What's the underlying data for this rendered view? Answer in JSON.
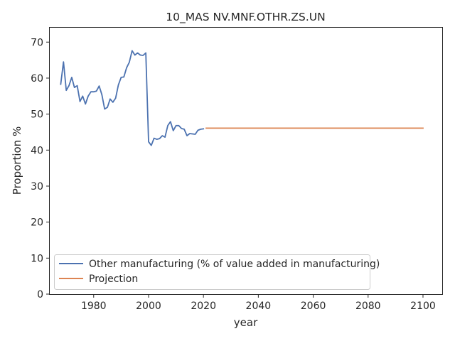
{
  "chart_data": {
    "type": "line",
    "title": "10_MAS NV.MNF.OTHR.ZS.UN",
    "xlabel": "year",
    "ylabel": "Proportion %",
    "xlim": [
      1964,
      2107
    ],
    "ylim": [
      0,
      74
    ],
    "xticks": [
      1980,
      2000,
      2020,
      2040,
      2060,
      2080,
      2100
    ],
    "yticks": [
      0,
      10,
      20,
      30,
      40,
      50,
      60,
      70
    ],
    "grid": false,
    "legend_position": "lower-left",
    "series": [
      {
        "name": "Other manufacturing (% of value added in manufacturing)",
        "color": "#4c72b0",
        "x": [
          1968,
          1969,
          1970,
          1971,
          1972,
          1973,
          1974,
          1975,
          1976,
          1977,
          1978,
          1979,
          1980,
          1981,
          1982,
          1983,
          1984,
          1985,
          1986,
          1987,
          1988,
          1989,
          1990,
          1991,
          1992,
          1993,
          1994,
          1995,
          1996,
          1997,
          1998,
          1999,
          2000,
          2001,
          2002,
          2003,
          2004,
          2005,
          2006,
          2007,
          2008,
          2009,
          2010,
          2011,
          2012,
          2013,
          2014,
          2015,
          2016,
          2017,
          2018,
          2019,
          2020
        ],
        "y": [
          58.3,
          64.5,
          56.6,
          57.9,
          60.2,
          57.4,
          57.9,
          53.5,
          55.0,
          52.8,
          55.0,
          56.2,
          56.2,
          56.4,
          57.8,
          55.4,
          51.4,
          51.9,
          54.2,
          53.3,
          54.4,
          58.1,
          60.2,
          60.3,
          62.9,
          64.4,
          67.6,
          66.4,
          67.0,
          66.4,
          66.3,
          67.0,
          42.3,
          41.3,
          43.3,
          43.0,
          43.2,
          44.0,
          43.6,
          46.8,
          47.9,
          45.4,
          46.8,
          46.8,
          46.0,
          45.8,
          44.0,
          44.6,
          44.5,
          44.4,
          45.5,
          45.8,
          45.9
        ]
      },
      {
        "name": "Projection",
        "color": "#dd8452",
        "x": [
          2021,
          2100
        ],
        "y": [
          46.1,
          46.1
        ]
      }
    ]
  }
}
